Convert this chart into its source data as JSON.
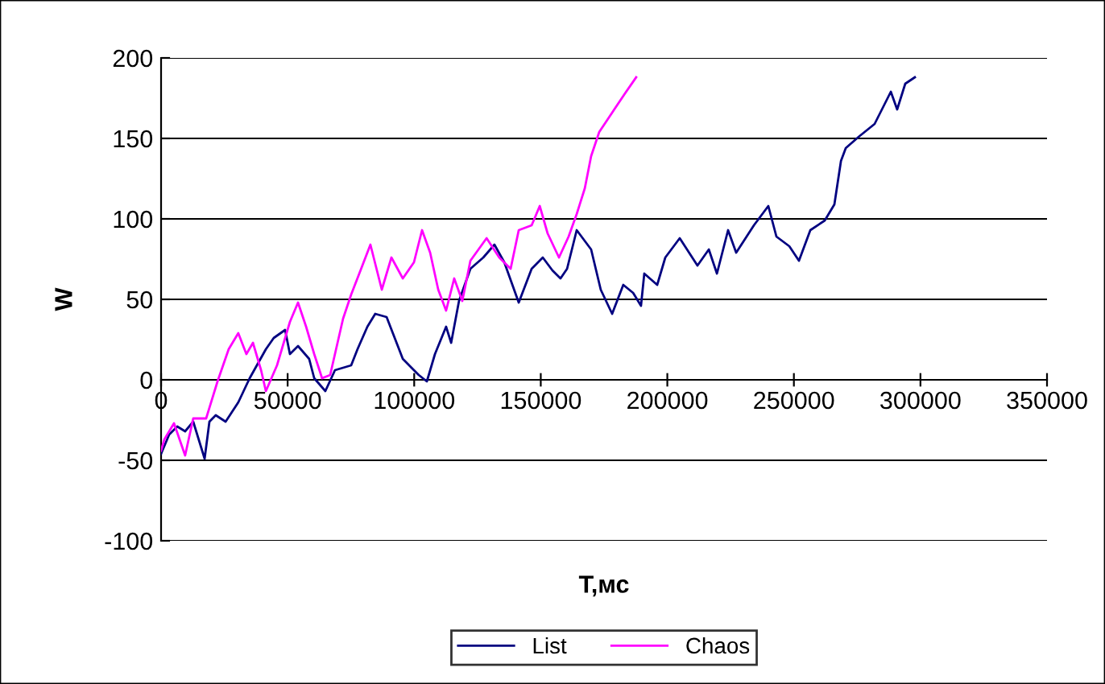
{
  "chart_data": {
    "type": "line",
    "xlabel": "T,мс",
    "ylabel": "W",
    "xlim": [
      0,
      350000
    ],
    "ylim": [
      -100,
      200
    ],
    "xticks": [
      0,
      50000,
      100000,
      150000,
      200000,
      250000,
      300000,
      350000
    ],
    "yticks": [
      -100,
      -50,
      0,
      50,
      100,
      150,
      200
    ],
    "grid": "y",
    "legend": "bottom",
    "marker": "none",
    "line_style": "solid",
    "series": [
      {
        "name": "List",
        "color": "#000080",
        "x": [
          0,
          3200,
          6400,
          9500,
          12700,
          17200,
          19100,
          21600,
          25500,
          30500,
          35000,
          41400,
          44500,
          49000,
          50900,
          54100,
          58500,
          60500,
          64900,
          68700,
          75100,
          77600,
          81500,
          84600,
          89100,
          95500,
          101800,
          105000,
          108200,
          112600,
          114600,
          117700,
          122200,
          127300,
          131700,
          135600,
          141300,
          146400,
          150800,
          154600,
          157800,
          160400,
          164200,
          169900,
          173700,
          178200,
          182600,
          186500,
          189600,
          190900,
          196000,
          199200,
          204900,
          211900,
          216400,
          219600,
          224000,
          227200,
          234200,
          239900,
          243100,
          248200,
          252000,
          256500,
          262200,
          266000,
          268600,
          270500,
          275600,
          281900,
          288300,
          290800,
          294000,
          297800
        ],
        "values": [
          -46,
          -34,
          -29,
          -32,
          -26,
          -49,
          -26,
          -22,
          -26,
          -14,
          1,
          19,
          26,
          31,
          16,
          21,
          13,
          1,
          -7,
          6,
          9,
          19,
          33,
          41,
          39,
          13,
          3,
          -1,
          16,
          33,
          23,
          49,
          69,
          76,
          84,
          73,
          48,
          69,
          76,
          68,
          63,
          69,
          93,
          81,
          56,
          41,
          59,
          54,
          46,
          66,
          59,
          76,
          88,
          71,
          81,
          66,
          93,
          79,
          96,
          108,
          89,
          83,
          74,
          93,
          99,
          109,
          136,
          144,
          151,
          159,
          179,
          168,
          184,
          188
        ]
      },
      {
        "name": "Chaos",
        "color": "#ff00ff",
        "x": [
          0,
          1300,
          5100,
          9500,
          12700,
          17800,
          22300,
          26700,
          30500,
          33700,
          36300,
          39500,
          41400,
          45800,
          50900,
          54100,
          57300,
          60500,
          63600,
          66800,
          71900,
          75100,
          78300,
          82700,
          87200,
          91000,
          95500,
          99900,
          103100,
          106300,
          109500,
          112600,
          115800,
          119000,
          122200,
          128600,
          133600,
          138100,
          141300,
          146400,
          149600,
          152700,
          157200,
          161000,
          164200,
          167400,
          169900,
          173100,
          178200,
          183300,
          187700
        ],
        "values": [
          -44,
          -37,
          -27,
          -47,
          -24,
          -24,
          -1,
          19,
          29,
          16,
          23,
          6,
          -7,
          9,
          36,
          48,
          33,
          16,
          1,
          3,
          38,
          53,
          66,
          84,
          56,
          76,
          63,
          73,
          93,
          79,
          56,
          43,
          63,
          49,
          74,
          88,
          76,
          69,
          93,
          96,
          108,
          91,
          76,
          89,
          103,
          119,
          139,
          154,
          166,
          178,
          188
        ]
      }
    ]
  }
}
